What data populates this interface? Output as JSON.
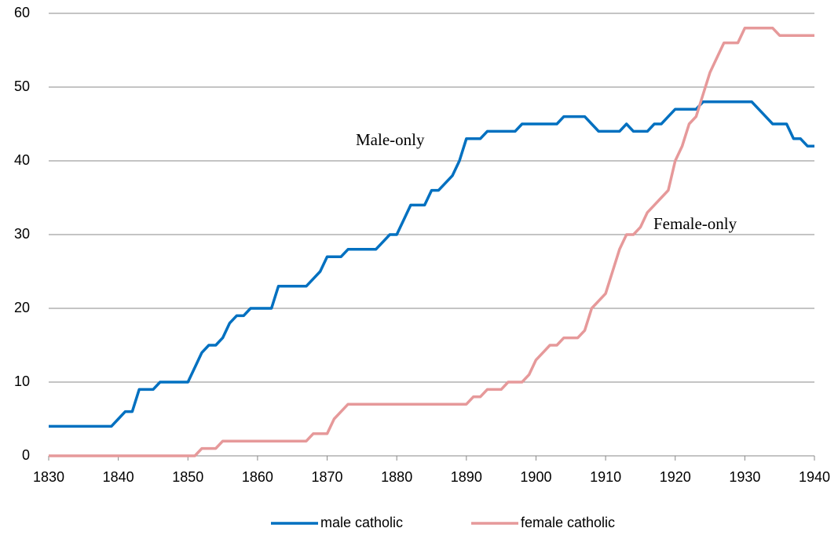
{
  "chart_data": {
    "type": "line",
    "x": [
      1830,
      1831,
      1832,
      1833,
      1834,
      1835,
      1836,
      1837,
      1838,
      1839,
      1840,
      1841,
      1842,
      1843,
      1844,
      1845,
      1846,
      1847,
      1848,
      1849,
      1850,
      1851,
      1852,
      1853,
      1854,
      1855,
      1856,
      1857,
      1858,
      1859,
      1860,
      1861,
      1862,
      1863,
      1864,
      1865,
      1866,
      1867,
      1868,
      1869,
      1870,
      1871,
      1872,
      1873,
      1874,
      1875,
      1876,
      1877,
      1878,
      1879,
      1880,
      1881,
      1882,
      1883,
      1884,
      1885,
      1886,
      1887,
      1888,
      1889,
      1890,
      1891,
      1892,
      1893,
      1894,
      1895,
      1896,
      1897,
      1898,
      1899,
      1900,
      1901,
      1902,
      1903,
      1904,
      1905,
      1906,
      1907,
      1908,
      1909,
      1910,
      1911,
      1912,
      1913,
      1914,
      1915,
      1916,
      1917,
      1918,
      1919,
      1920,
      1921,
      1922,
      1923,
      1924,
      1925,
      1926,
      1927,
      1928,
      1929,
      1930,
      1931,
      1932,
      1933,
      1934,
      1935,
      1936,
      1937,
      1938,
      1939,
      1940
    ],
    "series": [
      {
        "name": "male catholic",
        "color": "#0070c0",
        "values": [
          4,
          4,
          4,
          4,
          4,
          4,
          4,
          4,
          4,
          4,
          5,
          6,
          6,
          9,
          9,
          9,
          10,
          10,
          10,
          10,
          10,
          12,
          14,
          15,
          15,
          16,
          18,
          19,
          19,
          20,
          20,
          20,
          20,
          23,
          23,
          23,
          23,
          23,
          24,
          25,
          27,
          27,
          27,
          28,
          28,
          28,
          28,
          28,
          29,
          30,
          30,
          32,
          34,
          34,
          34,
          36,
          36,
          37,
          38,
          40,
          43,
          43,
          43,
          44,
          44,
          44,
          44,
          44,
          45,
          45,
          45,
          45,
          45,
          45,
          46,
          46,
          46,
          46,
          45,
          44,
          44,
          44,
          44,
          45,
          44,
          44,
          44,
          45,
          45,
          46,
          47,
          47,
          47,
          47,
          48,
          48,
          48,
          48,
          48,
          48,
          48,
          48,
          47,
          46,
          45,
          45,
          45,
          43,
          43,
          42,
          42
        ]
      },
      {
        "name": "female catholic",
        "color": "#e6999a",
        "values": [
          0,
          0,
          0,
          0,
          0,
          0,
          0,
          0,
          0,
          0,
          0,
          0,
          0,
          0,
          0,
          0,
          0,
          0,
          0,
          0,
          0,
          0,
          1,
          1,
          1,
          2,
          2,
          2,
          2,
          2,
          2,
          2,
          2,
          2,
          2,
          2,
          2,
          2,
          3,
          3,
          3,
          5,
          6,
          7,
          7,
          7,
          7,
          7,
          7,
          7,
          7,
          7,
          7,
          7,
          7,
          7,
          7,
          7,
          7,
          7,
          7,
          8,
          8,
          9,
          9,
          9,
          10,
          10,
          10,
          11,
          13,
          14,
          15,
          15,
          16,
          16,
          16,
          17,
          20,
          21,
          22,
          25,
          28,
          30,
          30,
          31,
          33,
          34,
          35,
          36,
          40,
          42,
          45,
          46,
          49,
          52,
          54,
          56,
          56,
          56,
          58,
          58,
          58,
          58,
          58,
          57,
          57,
          57,
          57,
          57,
          57
        ]
      }
    ],
    "annotations": [
      "Male-only",
      "Female-only"
    ],
    "xlim": [
      1830,
      1940
    ],
    "xticks": [
      1830,
      1840,
      1850,
      1860,
      1870,
      1880,
      1890,
      1900,
      1910,
      1920,
      1930,
      1940
    ],
    "ylim": [
      0,
      60
    ],
    "yticks": [
      0,
      10,
      20,
      30,
      40,
      50,
      60
    ],
    "grid": true,
    "legend": "bottom"
  }
}
